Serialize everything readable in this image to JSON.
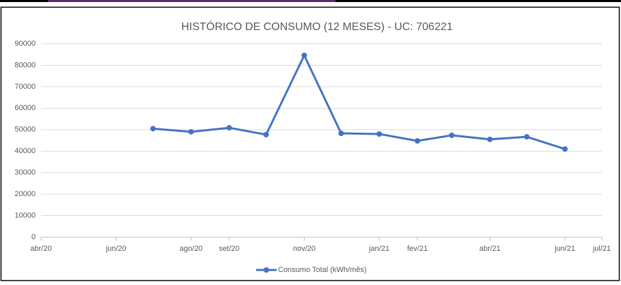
{
  "chart_data": {
    "type": "line",
    "title": "HISTÓRICO  DE CONSUMO (12 MESES) - UC: 706221",
    "x": [
      "2020-07",
      "2020-08",
      "2020-09",
      "2020-10",
      "2020-11",
      "2020-12",
      "2021-01",
      "2021-02",
      "2021-03",
      "2021-04",
      "2021-05",
      "2021-06"
    ],
    "series": [
      {
        "name": "Consumo Total (kWh/mês)",
        "color": "#4472c4",
        "values": [
          50500,
          49000,
          50900,
          47700,
          84600,
          48300,
          48000,
          44800,
          47400,
          45500,
          46700,
          41000
        ]
      }
    ],
    "xlim": [
      "2020-04",
      "2021-07"
    ],
    "xticks": [
      {
        "value": "2020-04",
        "label": "abr/20"
      },
      {
        "value": "2020-06",
        "label": "jun/20"
      },
      {
        "value": "2020-08",
        "label": "ago/20"
      },
      {
        "value": "2020-09",
        "label": "set/20"
      },
      {
        "value": "2020-11",
        "label": "nov/20"
      },
      {
        "value": "2021-01",
        "label": "jan/21"
      },
      {
        "value": "2021-02",
        "label": "fev/21"
      },
      {
        "value": "2021-04",
        "label": "abr/21"
      },
      {
        "value": "2021-06",
        "label": "jun/21"
      },
      {
        "value": "2021-07",
        "label": "jul/21"
      }
    ],
    "ylim": [
      0,
      90000
    ],
    "yticks": [
      0,
      10000,
      20000,
      30000,
      40000,
      50000,
      60000,
      70000,
      80000,
      90000
    ],
    "grid": true,
    "legend": "bottom"
  }
}
